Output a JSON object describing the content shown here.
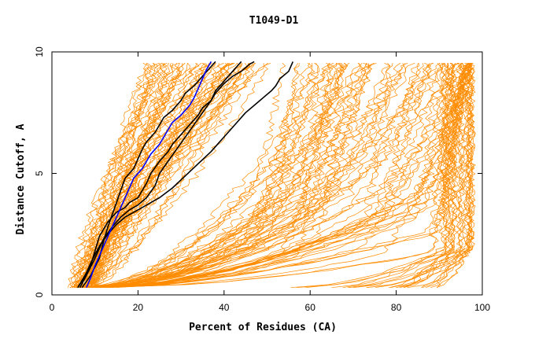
{
  "chart_data": {
    "type": "line",
    "title": "T1049-D1",
    "xlabel": "Percent of Residues (CA)",
    "ylabel": "Distance Cutoff, A",
    "xlim": [
      0,
      100
    ],
    "ylim": [
      0,
      10
    ],
    "x_ticks": [
      "0",
      "20",
      "40",
      "60",
      "80",
      "100"
    ],
    "y_ticks": [
      "0",
      "5",
      "10"
    ],
    "grid": false,
    "colors": {
      "models": "#ff8c00",
      "highlight": "#000000",
      "reference": "#0000ff"
    },
    "series": [
      {
        "group": "black",
        "x": [
          6,
          7,
          9,
          10,
          11,
          13,
          15,
          17,
          18,
          20,
          21,
          22,
          23,
          25,
          27,
          28,
          30,
          32,
          34,
          35,
          37,
          38,
          40,
          42,
          44,
          46,
          47
        ],
        "y": [
          0.3,
          0.6,
          1.2,
          1.8,
          2.4,
          3.0,
          3.4,
          3.6,
          3.8,
          4.0,
          4.3,
          4.6,
          5.0,
          5.5,
          5.9,
          6.2,
          6.6,
          7.0,
          7.4,
          7.7,
          8.0,
          8.3,
          8.7,
          9.0,
          9.2,
          9.5,
          9.6
        ]
      },
      {
        "group": "black",
        "x": [
          6.5,
          8,
          10,
          12,
          14,
          16,
          18,
          20,
          22,
          24,
          25,
          27,
          29,
          31,
          33,
          35,
          37,
          38,
          40,
          42,
          43,
          44
        ],
        "y": [
          0.3,
          0.8,
          1.5,
          2.3,
          2.8,
          3.2,
          3.5,
          3.7,
          4.0,
          4.5,
          5.0,
          5.5,
          6.0,
          6.5,
          7.0,
          7.5,
          8.0,
          8.4,
          8.8,
          9.2,
          9.4,
          9.6
        ]
      },
      {
        "group": "black",
        "x": [
          6,
          7.5,
          9,
          11,
          13,
          15,
          17,
          19,
          21,
          23,
          25,
          28,
          31,
          34,
          37,
          39,
          41,
          43,
          45,
          47,
          49,
          51,
          52,
          53,
          55,
          56
        ],
        "y": [
          0.3,
          0.7,
          1.3,
          2.0,
          2.5,
          2.9,
          3.2,
          3.4,
          3.6,
          3.8,
          4.0,
          4.4,
          4.9,
          5.4,
          5.9,
          6.3,
          6.7,
          7.1,
          7.5,
          7.8,
          8.1,
          8.4,
          8.6,
          8.9,
          9.2,
          9.6
        ]
      },
      {
        "group": "black",
        "x": [
          7,
          9,
          11,
          12,
          13,
          14,
          15,
          16,
          17,
          19,
          20,
          21,
          22,
          24,
          25,
          26,
          28,
          30,
          31,
          33,
          34,
          35,
          36,
          37,
          38
        ],
        "y": [
          0.3,
          0.8,
          1.5,
          2.2,
          2.8,
          3.3,
          3.8,
          4.3,
          4.8,
          5.2,
          5.6,
          6.0,
          6.3,
          6.7,
          7.0,
          7.3,
          7.6,
          8.0,
          8.3,
          8.6,
          8.8,
          9.0,
          9.2,
          9.4,
          9.6
        ]
      },
      {
        "group": "blue",
        "x": [
          8,
          9,
          10,
          11,
          12,
          13,
          14,
          15,
          16,
          17,
          18,
          19,
          21,
          22,
          23,
          25,
          26,
          27,
          28,
          30,
          32,
          33,
          34,
          35,
          36,
          37
        ],
        "y": [
          0.3,
          0.7,
          1.2,
          1.6,
          2.0,
          2.4,
          2.8,
          3.2,
          3.6,
          4.0,
          4.4,
          4.8,
          5.2,
          5.5,
          5.8,
          6.2,
          6.5,
          6.8,
          7.1,
          7.4,
          7.8,
          8.1,
          8.5,
          8.9,
          9.3,
          9.6
        ]
      }
    ]
  }
}
